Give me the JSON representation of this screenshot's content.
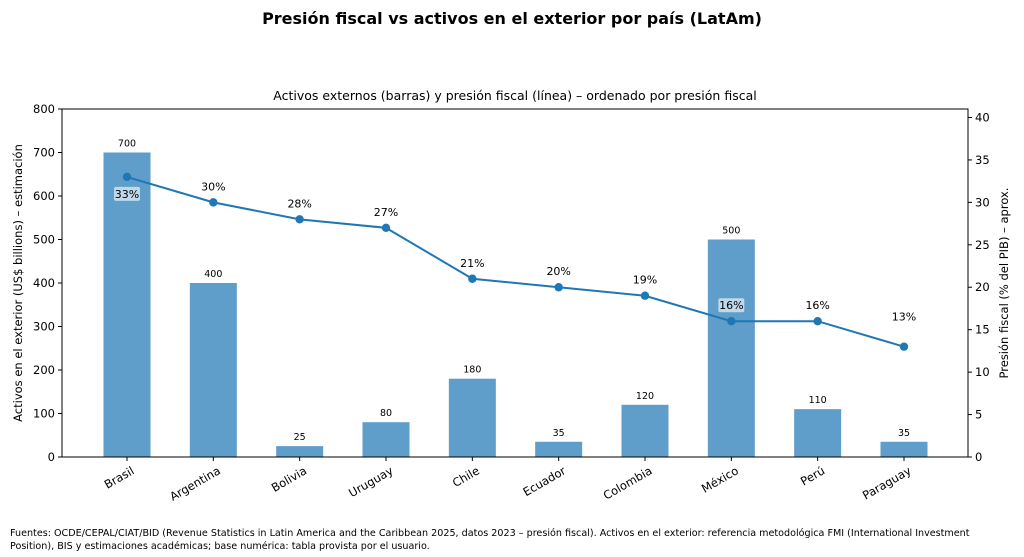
{
  "chart_data": {
    "type": "bar",
    "title": "Presión fiscal vs activos en el exterior por país (LatAm)",
    "subtitle": "Activos externos (barras) y presión fiscal (línea) – ordenado por presión fiscal",
    "categories": [
      "Brasil",
      "Argentina",
      "Bolivia",
      "Uruguay",
      "Chile",
      "Ecuador",
      "Colombia",
      "México",
      "Perú",
      "Paraguay"
    ],
    "series": [
      {
        "name": "Activos en el exterior",
        "type": "bar",
        "axis": "left",
        "color": "#5f9ecb",
        "values": [
          700,
          400,
          25,
          80,
          180,
          35,
          120,
          500,
          110,
          35
        ],
        "labels": [
          "700",
          "400",
          "25",
          "80",
          "180",
          "35",
          "120",
          "500",
          "110",
          "35"
        ]
      },
      {
        "name": "Presión fiscal",
        "type": "line",
        "axis": "right",
        "color": "#1f77b4",
        "values": [
          33,
          30,
          28,
          27,
          21,
          20,
          19,
          16,
          16,
          13
        ],
        "labels": [
          "33%",
          "30%",
          "28%",
          "27%",
          "21%",
          "20%",
          "19%",
          "16%",
          "16%",
          "13%"
        ],
        "label_boxed": [
          true,
          false,
          false,
          false,
          false,
          false,
          false,
          true,
          false,
          false
        ]
      }
    ],
    "ylabel": "Activos en el exterior (US$ billions) – estimación",
    "ylabel_right": "Presión fiscal (% del PIB) – aprox.",
    "xlabel": "",
    "ylim": [
      0,
      800
    ],
    "ylim_right": [
      0,
      41
    ],
    "yticks": [
      0,
      100,
      200,
      300,
      400,
      500,
      600,
      700,
      800
    ],
    "yticks_right": [
      0,
      5,
      10,
      15,
      20,
      25,
      30,
      35,
      40
    ],
    "grid": false,
    "legend": "none"
  },
  "footer": {
    "line1": "Fuentes: OCDE/CEPAL/CIAT/BID (Revenue Statistics in Latin America and the Caribbean 2025, datos 2023 – presión fiscal). Activos en el exterior: referencia metodológica FMI (International Investment",
    "line2": "Position), BIS y estimaciones académicas; base numérica: tabla provista por el usuario."
  }
}
